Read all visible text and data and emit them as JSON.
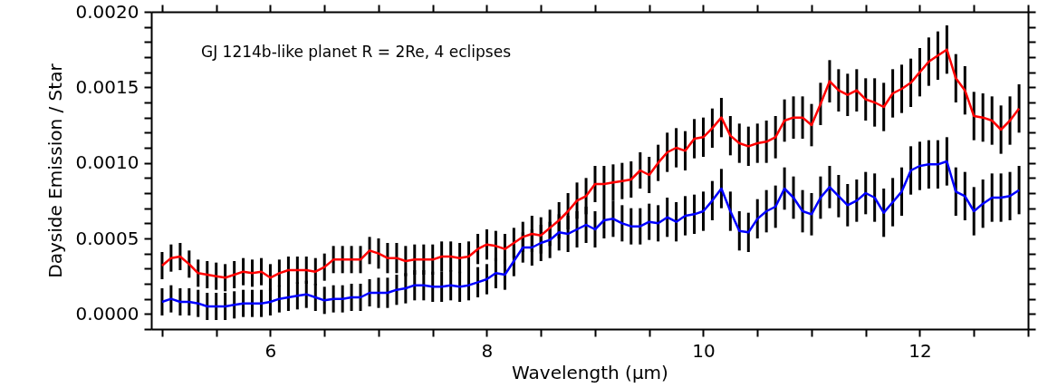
{
  "chart_data": {
    "type": "line",
    "xlabel": "Wavelength (μm)",
    "ylabel": "Dayside Emission / Star",
    "annotations": [
      "GJ 1214b-like planet R = 2Re, 4 eclipses"
    ],
    "x": [
      5,
      5.083,
      5.167,
      5.25,
      5.333,
      5.417,
      5.5,
      5.583,
      5.667,
      5.75,
      5.833,
      5.917,
      6,
      6.083,
      6.167,
      6.25,
      6.333,
      6.417,
      6.5,
      6.583,
      6.667,
      6.75,
      6.833,
      6.917,
      7,
      7.083,
      7.167,
      7.25,
      7.333,
      7.417,
      7.5,
      7.583,
      7.667,
      7.75,
      7.833,
      7.917,
      8,
      8.083,
      8.167,
      8.25,
      8.333,
      8.417,
      8.5,
      8.583,
      8.667,
      8.75,
      8.833,
      8.917,
      9,
      9.083,
      9.167,
      9.25,
      9.333,
      9.417,
      9.5,
      9.583,
      9.667,
      9.75,
      9.833,
      9.917,
      10,
      10.083,
      10.167,
      10.25,
      10.333,
      10.417,
      10.5,
      10.583,
      10.667,
      10.75,
      10.833,
      10.917,
      11,
      11.083,
      11.167,
      11.25,
      11.333,
      11.417,
      11.5,
      11.583,
      11.667,
      11.75,
      11.833,
      11.917,
      12,
      12.083,
      12.167,
      12.25,
      12.333,
      12.417,
      12.5,
      12.583,
      12.667,
      12.75,
      12.833,
      12.917
    ],
    "series": [
      {
        "color": "#ff0000",
        "values": [
          0.00032,
          0.00037,
          0.00038,
          0.00033,
          0.00027,
          0.00026,
          0.00025,
          0.00024,
          0.00026,
          0.00028,
          0.00027,
          0.00028,
          0.00024,
          0.00027,
          0.00029,
          0.00029,
          0.00029,
          0.00028,
          0.00031,
          0.00036,
          0.00036,
          0.00036,
          0.00036,
          0.00042,
          0.0004,
          0.00037,
          0.00037,
          0.00035,
          0.00036,
          0.00036,
          0.00036,
          0.00038,
          0.00038,
          0.00037,
          0.00038,
          0.00043,
          0.00046,
          0.00045,
          0.00043,
          0.00047,
          0.00051,
          0.00053,
          0.00052,
          0.00057,
          0.00062,
          0.00068,
          0.00075,
          0.00078,
          0.00086,
          0.00086,
          0.00087,
          0.00088,
          0.00089,
          0.00095,
          0.00092,
          0.001,
          0.00107,
          0.0011,
          0.00108,
          0.00116,
          0.00117,
          0.00123,
          0.0013,
          0.00118,
          0.00113,
          0.00111,
          0.00113,
          0.00114,
          0.00117,
          0.00128,
          0.0013,
          0.0013,
          0.00125,
          0.00139,
          0.00154,
          0.00148,
          0.00145,
          0.00148,
          0.00142,
          0.0014,
          0.00137,
          0.00146,
          0.00149,
          0.00153,
          0.0016,
          0.00167,
          0.00171,
          0.00175,
          0.00156,
          0.00148,
          0.00131,
          0.0013,
          0.00128,
          0.00122,
          0.00128,
          0.00136
        ],
        "errors": [
          9e-05,
          9e-05,
          9e-05,
          9e-05,
          9e-05,
          9e-05,
          9e-05,
          9e-05,
          9e-05,
          9e-05,
          9e-05,
          9e-05,
          9e-05,
          9e-05,
          9e-05,
          9e-05,
          9e-05,
          9e-05,
          9e-05,
          9e-05,
          9e-05,
          9e-05,
          9e-05,
          9e-05,
          0.0001,
          0.0001,
          0.0001,
          0.0001,
          0.0001,
          0.0001,
          0.0001,
          0.0001,
          0.0001,
          0.0001,
          0.0001,
          0.0001,
          0.0001,
          0.0001,
          0.0001,
          0.0001,
          0.0001,
          0.00012,
          0.00012,
          0.00012,
          0.00012,
          0.00012,
          0.00012,
          0.00012,
          0.00012,
          0.00012,
          0.00012,
          0.00012,
          0.00012,
          0.00012,
          0.00012,
          0.00012,
          0.00013,
          0.00013,
          0.00013,
          0.00013,
          0.00013,
          0.00013,
          0.00013,
          0.00013,
          0.00013,
          0.00013,
          0.00013,
          0.00014,
          0.00014,
          0.00014,
          0.00014,
          0.00014,
          0.00014,
          0.00014,
          0.00014,
          0.00014,
          0.00014,
          0.00014,
          0.00014,
          0.00016,
          0.00016,
          0.00016,
          0.00016,
          0.00016,
          0.00016,
          0.00016,
          0.00016,
          0.00016,
          0.00016,
          0.00016,
          0.00016,
          0.00016,
          0.00016,
          0.00016,
          0.00016,
          0.00016
        ]
      },
      {
        "color": "#0000ff",
        "values": [
          8e-05,
          0.0001,
          8e-05,
          8e-05,
          7e-05,
          5e-05,
          5e-05,
          5e-05,
          6e-05,
          7e-05,
          7e-05,
          7e-05,
          8e-05,
          0.0001,
          0.00011,
          0.00012,
          0.00013,
          0.00011,
          9e-05,
          0.0001,
          0.0001,
          0.00011,
          0.00011,
          0.00014,
          0.00014,
          0.00014,
          0.00016,
          0.00017,
          0.00019,
          0.00019,
          0.00018,
          0.00018,
          0.00019,
          0.00018,
          0.00019,
          0.00021,
          0.00023,
          0.00027,
          0.00026,
          0.00035,
          0.00044,
          0.00044,
          0.00047,
          0.00049,
          0.00054,
          0.00053,
          0.00056,
          0.00059,
          0.00056,
          0.00062,
          0.00063,
          0.0006,
          0.00058,
          0.00058,
          0.00061,
          0.0006,
          0.00064,
          0.00061,
          0.00065,
          0.00066,
          0.00068,
          0.00075,
          0.00083,
          0.00068,
          0.00055,
          0.00054,
          0.00063,
          0.00068,
          0.00071,
          0.00083,
          0.00077,
          0.00068,
          0.00066,
          0.00077,
          0.00084,
          0.00078,
          0.00072,
          0.00075,
          0.0008,
          0.00077,
          0.00067,
          0.00074,
          0.00081,
          0.00095,
          0.00098,
          0.00099,
          0.00099,
          0.00101,
          0.00081,
          0.00078,
          0.00068,
          0.00073,
          0.00077,
          0.00077,
          0.00078,
          0.00082
        ],
        "errors": [
          9e-05,
          9e-05,
          9e-05,
          9e-05,
          9e-05,
          9e-05,
          9e-05,
          9e-05,
          9e-05,
          9e-05,
          9e-05,
          9e-05,
          9e-05,
          9e-05,
          9e-05,
          9e-05,
          9e-05,
          9e-05,
          9e-05,
          9e-05,
          9e-05,
          9e-05,
          9e-05,
          9e-05,
          0.0001,
          0.0001,
          0.0001,
          0.0001,
          0.0001,
          0.0001,
          0.0001,
          0.0001,
          0.0001,
          0.0001,
          0.0001,
          0.0001,
          0.0001,
          0.0001,
          0.0001,
          0.0001,
          0.0001,
          0.00012,
          0.00012,
          0.00012,
          0.00012,
          0.00012,
          0.00012,
          0.00012,
          0.00012,
          0.00012,
          0.00012,
          0.00012,
          0.00012,
          0.00012,
          0.00012,
          0.00012,
          0.00013,
          0.00013,
          0.00013,
          0.00013,
          0.00013,
          0.00013,
          0.00013,
          0.00013,
          0.00013,
          0.00013,
          0.00013,
          0.00014,
          0.00014,
          0.00014,
          0.00014,
          0.00014,
          0.00014,
          0.00014,
          0.00014,
          0.00014,
          0.00014,
          0.00014,
          0.00014,
          0.00016,
          0.00016,
          0.00016,
          0.00016,
          0.00016,
          0.00016,
          0.00016,
          0.00016,
          0.00016,
          0.00016,
          0.00016,
          0.00016,
          0.00016,
          0.00016,
          0.00016,
          0.00016,
          0.00016
        ]
      }
    ],
    "xlim": [
      4.9,
      13
    ],
    "xticks": [
      {
        "value": 5,
        "label": null
      },
      {
        "value": 5.5,
        "label": null
      },
      6,
      {
        "value": 6.5,
        "label": null
      },
      {
        "value": 7,
        "label": null
      },
      {
        "value": 7.5,
        "label": null
      },
      8,
      {
        "value": 8.5,
        "label": null
      },
      {
        "value": 9,
        "label": null
      },
      {
        "value": 9.5,
        "label": null
      },
      10,
      {
        "value": 10.5,
        "label": null
      },
      {
        "value": 11,
        "label": null
      },
      {
        "value": 11.5,
        "label": null
      },
      12,
      {
        "value": 12.5,
        "label": null
      },
      {
        "value": 13,
        "label": null
      }
    ],
    "ylim": [
      -0.0001,
      0.002
    ],
    "yticks": [
      {
        "value": -0.0001,
        "label": null
      },
      {
        "value": 0,
        "label": "0.0000"
      },
      {
        "value": 0.0001,
        "label": null
      },
      {
        "value": 0.0002,
        "label": null
      },
      {
        "value": 0.0003,
        "label": null
      },
      {
        "value": 0.0004,
        "label": null
      },
      {
        "value": 0.0005,
        "label": "0.0005"
      },
      {
        "value": 0.0006,
        "label": null
      },
      {
        "value": 0.0007,
        "label": null
      },
      {
        "value": 0.0008,
        "label": null
      },
      {
        "value": 0.0009,
        "label": null
      },
      {
        "value": 0.001,
        "label": "0.0010"
      },
      {
        "value": 0.0011,
        "label": null
      },
      {
        "value": 0.0012,
        "label": null
      },
      {
        "value": 0.0013,
        "label": null
      },
      {
        "value": 0.0014,
        "label": null
      },
      {
        "value": 0.0015,
        "label": "0.0015"
      },
      {
        "value": 0.0016,
        "label": null
      },
      {
        "value": 0.0017,
        "label": null
      },
      {
        "value": 0.0018,
        "label": null
      },
      {
        "value": 0.0019,
        "label": null
      },
      {
        "value": 0.002,
        "label": "0.0020"
      }
    ],
    "line_style": "solid"
  }
}
